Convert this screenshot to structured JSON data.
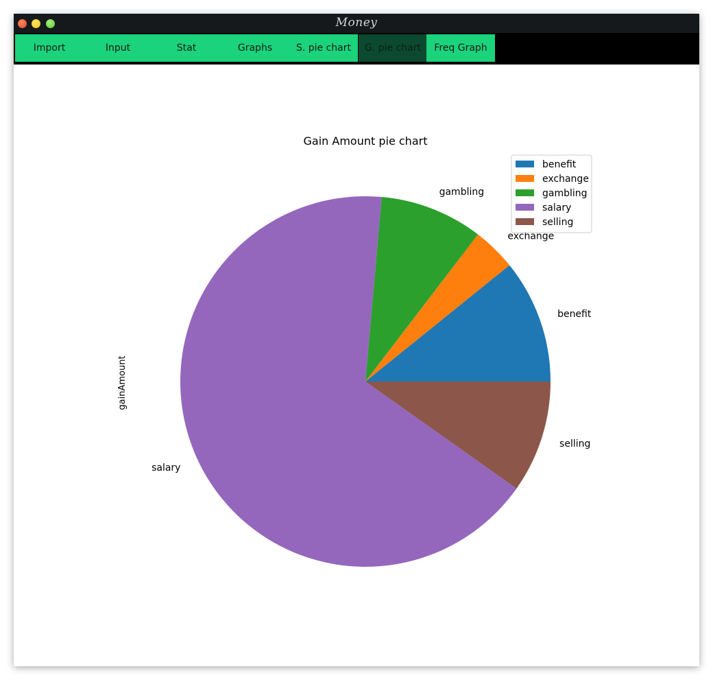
{
  "window": {
    "title": "Money"
  },
  "tabs": [
    {
      "label": "Import",
      "active": false
    },
    {
      "label": "Input",
      "active": false
    },
    {
      "label": "Stat",
      "active": false
    },
    {
      "label": "Graphs",
      "active": false
    },
    {
      "label": "S. pie chart",
      "active": false
    },
    {
      "label": "G. pie chart",
      "active": true
    },
    {
      "label": "Freq Graph",
      "active": false
    }
  ],
  "colors": {
    "tab_bg": "#1ad37a",
    "tab_active_bg": "#0b4a31",
    "titlebar_bg": "#16191b"
  },
  "chart_data": {
    "type": "pie",
    "title": "Gain Amount pie chart",
    "ylabel": "gainAmount",
    "legend_position": "top-right",
    "categories": [
      "benefit",
      "exchange",
      "gambling",
      "salary",
      "selling"
    ],
    "values": [
      10.8,
      3.8,
      9.0,
      66.6,
      9.8
    ],
    "colors": [
      "#1f77b4",
      "#ff7f0e",
      "#2ca02c",
      "#9467bd",
      "#8c564b"
    ]
  }
}
